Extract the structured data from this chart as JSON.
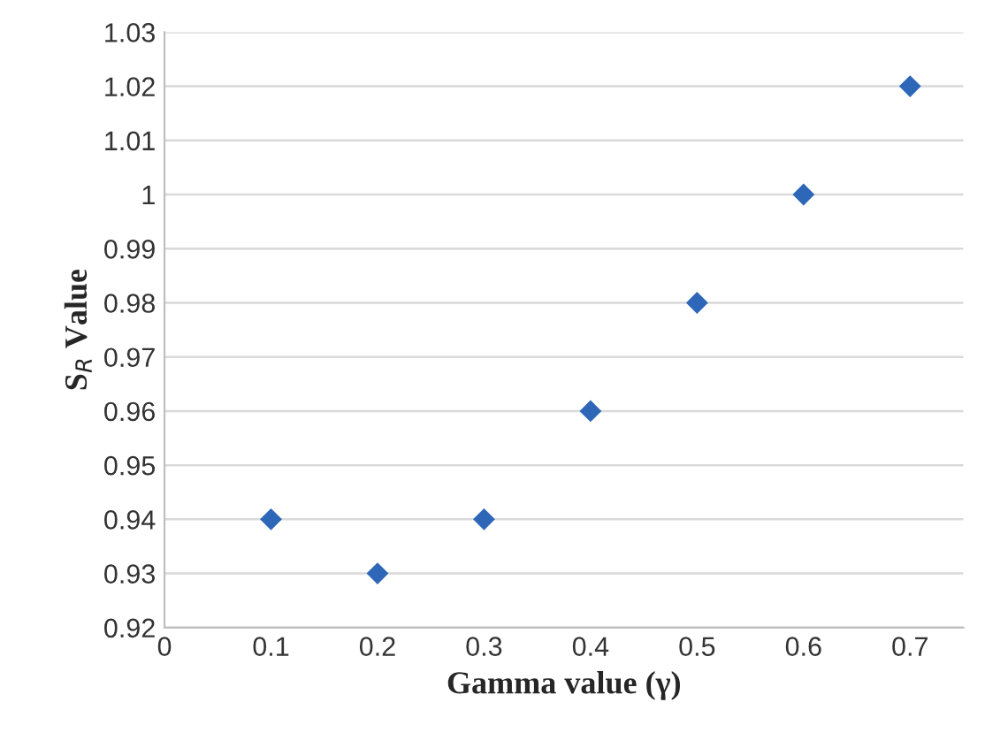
{
  "chart_data": {
    "type": "scatter",
    "xlabel": "Gamma value (γ)",
    "ylabel": "S$_{R}$ Value",
    "x": [
      0.1,
      0.2,
      0.3,
      0.4,
      0.5,
      0.6,
      0.7
    ],
    "series": [
      {
        "color": "#2e67b8",
        "values": [
          0.94,
          0.93,
          0.94,
          0.96,
          0.98,
          1,
          1.02
        ]
      }
    ],
    "marker": "diamond",
    "grid": "y",
    "legend": false,
    "xlim": [
      0,
      0.75
    ],
    "xticks": [
      0,
      0.1,
      0.2,
      0.3,
      0.4,
      0.5,
      0.6,
      0.7
    ],
    "ylim": [
      0.92,
      1.03
    ],
    "yticks": [
      0.92,
      0.93,
      0.94,
      0.95,
      0.96,
      0.97,
      0.98,
      0.99,
      1,
      1.01,
      1.02,
      1.03
    ]
  }
}
